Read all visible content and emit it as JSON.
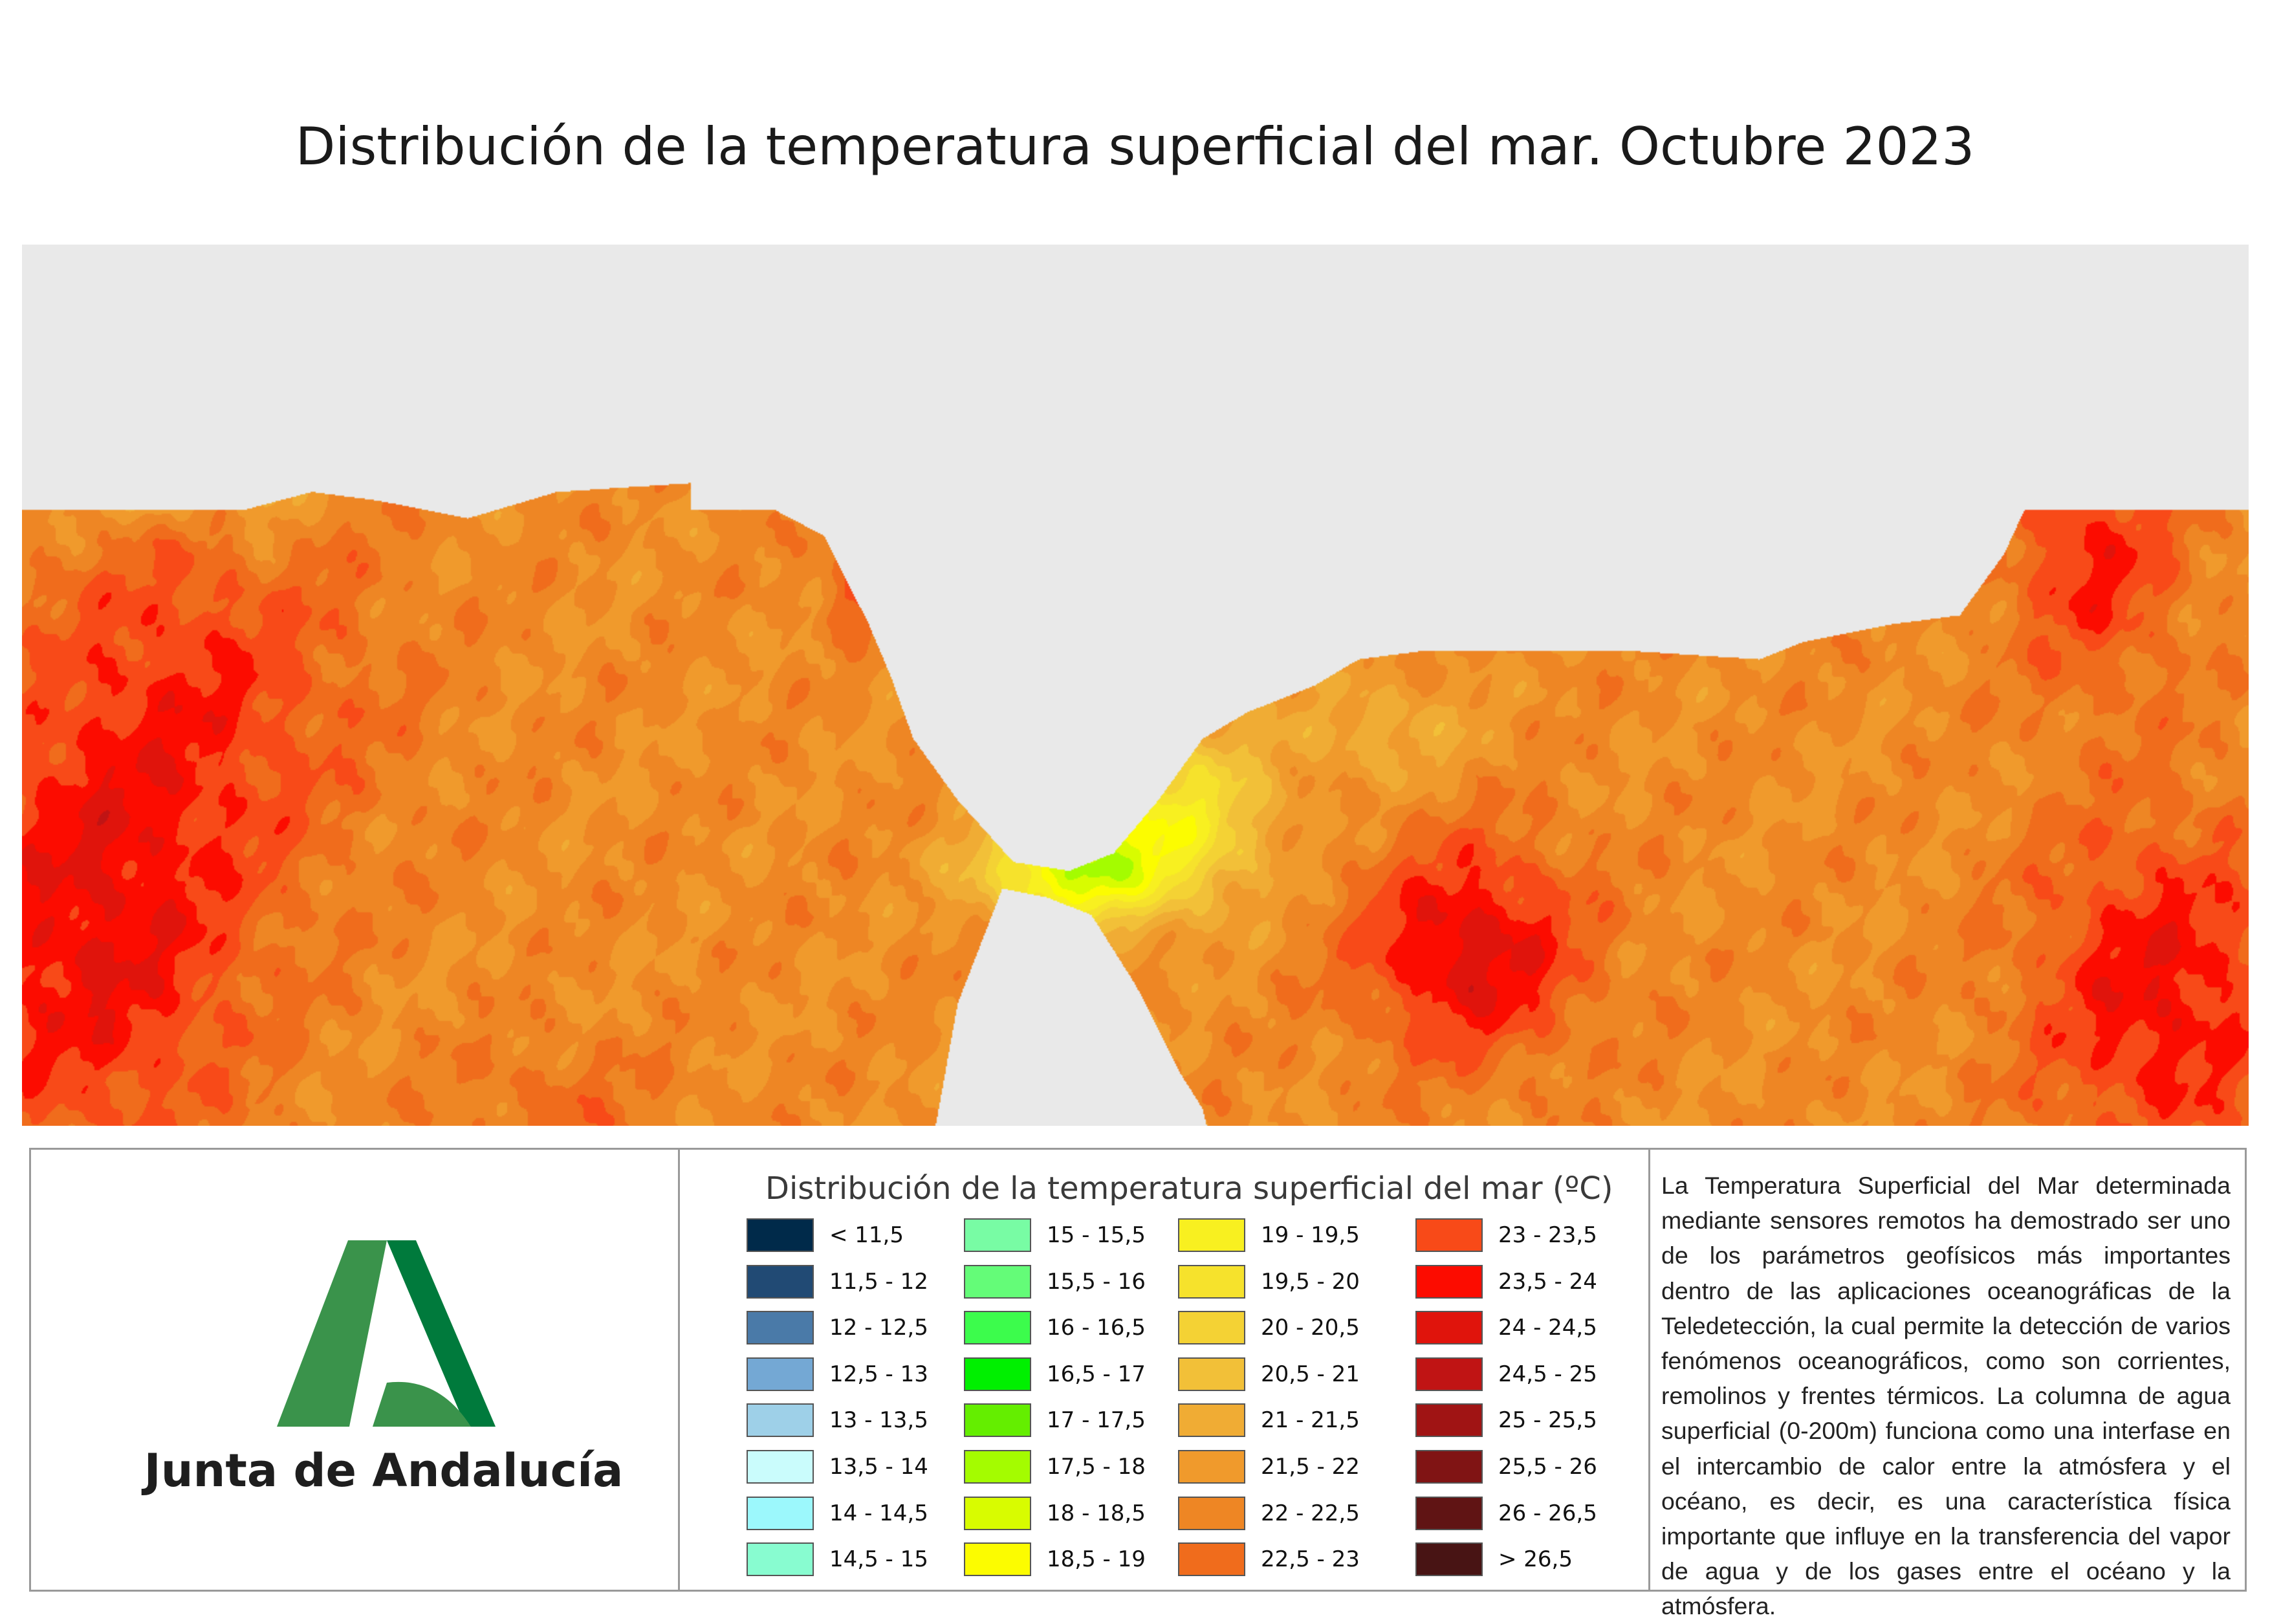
{
  "title": "Distribución de la temperatura superficial del mar. Octubre 2023",
  "map": {
    "land_color": "#e9e9e9",
    "color_by": "sea surface temperature class (ºC)"
  },
  "logo": {
    "organization": "Junta de Andalucía",
    "icon": "andalucia-emblem-icon",
    "colors": {
      "light_green": "#3a934b",
      "dark_green": "#007a3c"
    }
  },
  "legend": {
    "title": "Distribución de la temperatura superficial del mar (ºC)",
    "items": [
      {
        "label": "< 11,5",
        "color": "#002a4a"
      },
      {
        "label": "11,5 - 12",
        "color": "#214a74"
      },
      {
        "label": "12 - 12,5",
        "color": "#4a7aa8"
      },
      {
        "label": "12,5 - 13",
        "color": "#74a8d4"
      },
      {
        "label": "13 - 13,5",
        "color": "#9ed0e8"
      },
      {
        "label": "13,5 - 14",
        "color": "#cafcfc"
      },
      {
        "label": "14 - 14,5",
        "color": "#9cf8fc"
      },
      {
        "label": "14,5 - 15",
        "color": "#88fcd0"
      },
      {
        "label": "15 - 15,5",
        "color": "#78fca4"
      },
      {
        "label": "15,5 - 16",
        "color": "#64fc78"
      },
      {
        "label": "16 - 16,5",
        "color": "#3cfc4c"
      },
      {
        "label": "16,5 - 17",
        "color": "#00f000"
      },
      {
        "label": "17 - 17,5",
        "color": "#64ee00"
      },
      {
        "label": "17,5 - 18",
        "color": "#a4fc00"
      },
      {
        "label": "18 - 18,5",
        "color": "#d8fc00"
      },
      {
        "label": "18,5 - 19",
        "color": "#fcfc00"
      },
      {
        "label": "19 - 19,5",
        "color": "#f8f020"
      },
      {
        "label": "19,5 - 20",
        "color": "#f6e22c"
      },
      {
        "label": "20 - 20,5",
        "color": "#f4d234"
      },
      {
        "label": "20,5 - 21",
        "color": "#f2c038"
      },
      {
        "label": "21 - 21,5",
        "color": "#f0ac34"
      },
      {
        "label": "21,5 - 22",
        "color": "#f09a2c"
      },
      {
        "label": "22 - 22,5",
        "color": "#ee8624"
      },
      {
        "label": "22,5 - 23",
        "color": "#f06c1c"
      },
      {
        "label": "23 - 23,5",
        "color": "#f84a18"
      },
      {
        "label": "23,5 - 24",
        "color": "#fc0c00"
      },
      {
        "label": "24 - 24,5",
        "color": "#e0140c"
      },
      {
        "label": "24,5 - 25",
        "color": "#c01414"
      },
      {
        "label": "25 - 25,5",
        "color": "#a01414"
      },
      {
        "label": "25,5 - 26",
        "color": "#801414"
      },
      {
        "label": "26 - 26,5",
        "color": "#601414"
      },
      {
        "label": "> 26,5",
        "color": "#481414"
      }
    ]
  },
  "description": "La Temperatura Superficial del Mar determinada mediante sensores remotos ha demostrado ser uno de los parámetros geofísicos más importantes dentro de las aplicaciones oceanográficas de la Teledetección, la cual permite la detección de varios fenómenos oceanográficos, como son corrientes, remolinos y frentes térmicos. La columna de agua superficial (0-200m) funciona como una interfase en el intercambio de calor entre la atmósfera y el océano, es decir, es una característica física importante que influye en la transferencia del vapor de agua y de los gases entre el océano y la atmósfera."
}
